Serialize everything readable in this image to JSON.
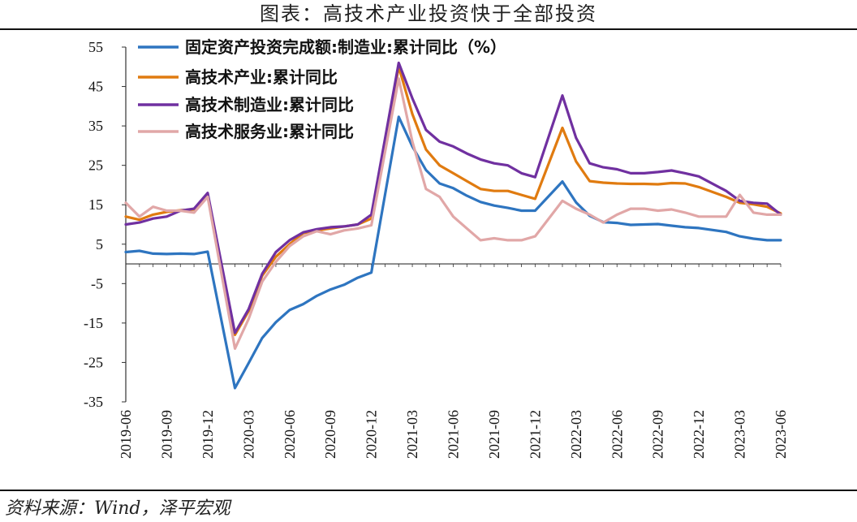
{
  "title": "图表：高技术产业投资快于全部投资",
  "source": "资料来源：Wind，泽平宏观",
  "chart_data": {
    "type": "line",
    "title": "",
    "xlabel": "",
    "ylabel": "",
    "ylim": [
      -35,
      55
    ],
    "yticks": [
      55,
      45,
      35,
      25,
      15,
      5,
      -5,
      -15,
      -25,
      -35
    ],
    "x": [
      "2019-06",
      "2019-07",
      "2019-08",
      "2019-09",
      "2019-10",
      "2019-11",
      "2019-12",
      "2020-01",
      "2020-02",
      "2020-03",
      "2020-04",
      "2020-05",
      "2020-06",
      "2020-07",
      "2020-08",
      "2020-09",
      "2020-10",
      "2020-11",
      "2020-12",
      "2021-01",
      "2021-02",
      "2021-03",
      "2021-04",
      "2021-05",
      "2021-06",
      "2021-07",
      "2021-08",
      "2021-09",
      "2021-10",
      "2021-11",
      "2021-12",
      "2022-01",
      "2022-02",
      "2022-03",
      "2022-04",
      "2022-05",
      "2022-06",
      "2022-07",
      "2022-08",
      "2022-09",
      "2022-10",
      "2022-11",
      "2022-12",
      "2023-01",
      "2023-02",
      "2023-03",
      "2023-04",
      "2023-05",
      "2023-06"
    ],
    "xticks": [
      "2019-06",
      "2019-09",
      "2019-12",
      "2020-03",
      "2020-06",
      "2020-09",
      "2020-12",
      "2021-03",
      "2021-06",
      "2021-09",
      "2021-12",
      "2022-03",
      "2022-06",
      "2022-09",
      "2022-12",
      "2023-03",
      "2023-06"
    ],
    "legend_position": "top-left",
    "grid": false,
    "series": [
      {
        "name": "固定资产投资完成额:制造业:累计同比（%）",
        "color": "#2e75c0",
        "values": [
          3.0,
          3.3,
          2.6,
          2.5,
          2.6,
          2.5,
          3.1,
          null,
          -31.5,
          -25.2,
          -18.8,
          -14.8,
          -11.7,
          -10.2,
          -8.1,
          -6.5,
          -5.3,
          -3.5,
          -2.2,
          null,
          37.3,
          29.8,
          23.8,
          20.4,
          19.2,
          17.3,
          15.7,
          14.8,
          14.2,
          13.5,
          13.5,
          null,
          20.9,
          15.6,
          12.2,
          10.6,
          10.4,
          9.9,
          10.0,
          10.1,
          9.7,
          9.3,
          9.1,
          null,
          8.1,
          7.0,
          6.4,
          6.0,
          6.0
        ]
      },
      {
        "name": "高技术产业:累计同比",
        "color": "#e07b10",
        "values": [
          12.0,
          11.2,
          12.5,
          13.2,
          13.6,
          13.8,
          17.3,
          null,
          -18.0,
          -12.0,
          -3.0,
          1.8,
          5.0,
          7.8,
          8.5,
          9.0,
          9.5,
          10.0,
          11.5,
          null,
          50.0,
          38.0,
          29.0,
          25.0,
          23.0,
          21.0,
          19.0,
          18.5,
          18.5,
          17.5,
          16.5,
          null,
          34.5,
          26.0,
          21.0,
          20.6,
          20.4,
          20.3,
          20.3,
          20.2,
          20.5,
          20.4,
          19.5,
          null,
          17.0,
          15.5,
          15.1,
          14.5,
          12.8
        ]
      },
      {
        "name": "高技术制造业:累计同比",
        "color": "#7030a0",
        "values": [
          10.0,
          10.5,
          11.5,
          12.0,
          13.5,
          14.0,
          18.0,
          null,
          -17.5,
          -11.5,
          -2.5,
          3.0,
          6.0,
          8.0,
          8.8,
          9.3,
          9.5,
          10.0,
          12.5,
          null,
          51.0,
          42.0,
          34.0,
          31.0,
          29.8,
          28.0,
          26.5,
          25.5,
          25.0,
          23.0,
          22.0,
          null,
          42.7,
          32.0,
          25.5,
          24.5,
          24.0,
          23.0,
          23.0,
          23.3,
          23.7,
          23.0,
          22.2,
          null,
          18.5,
          16.0,
          15.5,
          15.3,
          12.5
        ]
      },
      {
        "name": "高技术服务业:累计同比",
        "color": "#e1a7a7",
        "values": [
          15.5,
          12.0,
          14.5,
          13.5,
          13.5,
          13.0,
          17.0,
          null,
          -21.5,
          -14.0,
          -4.5,
          0.5,
          4.5,
          7.0,
          8.3,
          7.5,
          8.5,
          9.0,
          9.8,
          null,
          47.0,
          31.0,
          19.0,
          17.0,
          12.0,
          9.0,
          6.0,
          6.5,
          6.0,
          6.0,
          7.0,
          null,
          16.0,
          14.0,
          12.5,
          10.5,
          12.5,
          14.0,
          14.0,
          13.5,
          13.8,
          13.0,
          12.0,
          null,
          12.0,
          17.5,
          13.0,
          12.5,
          12.5
        ]
      }
    ]
  }
}
